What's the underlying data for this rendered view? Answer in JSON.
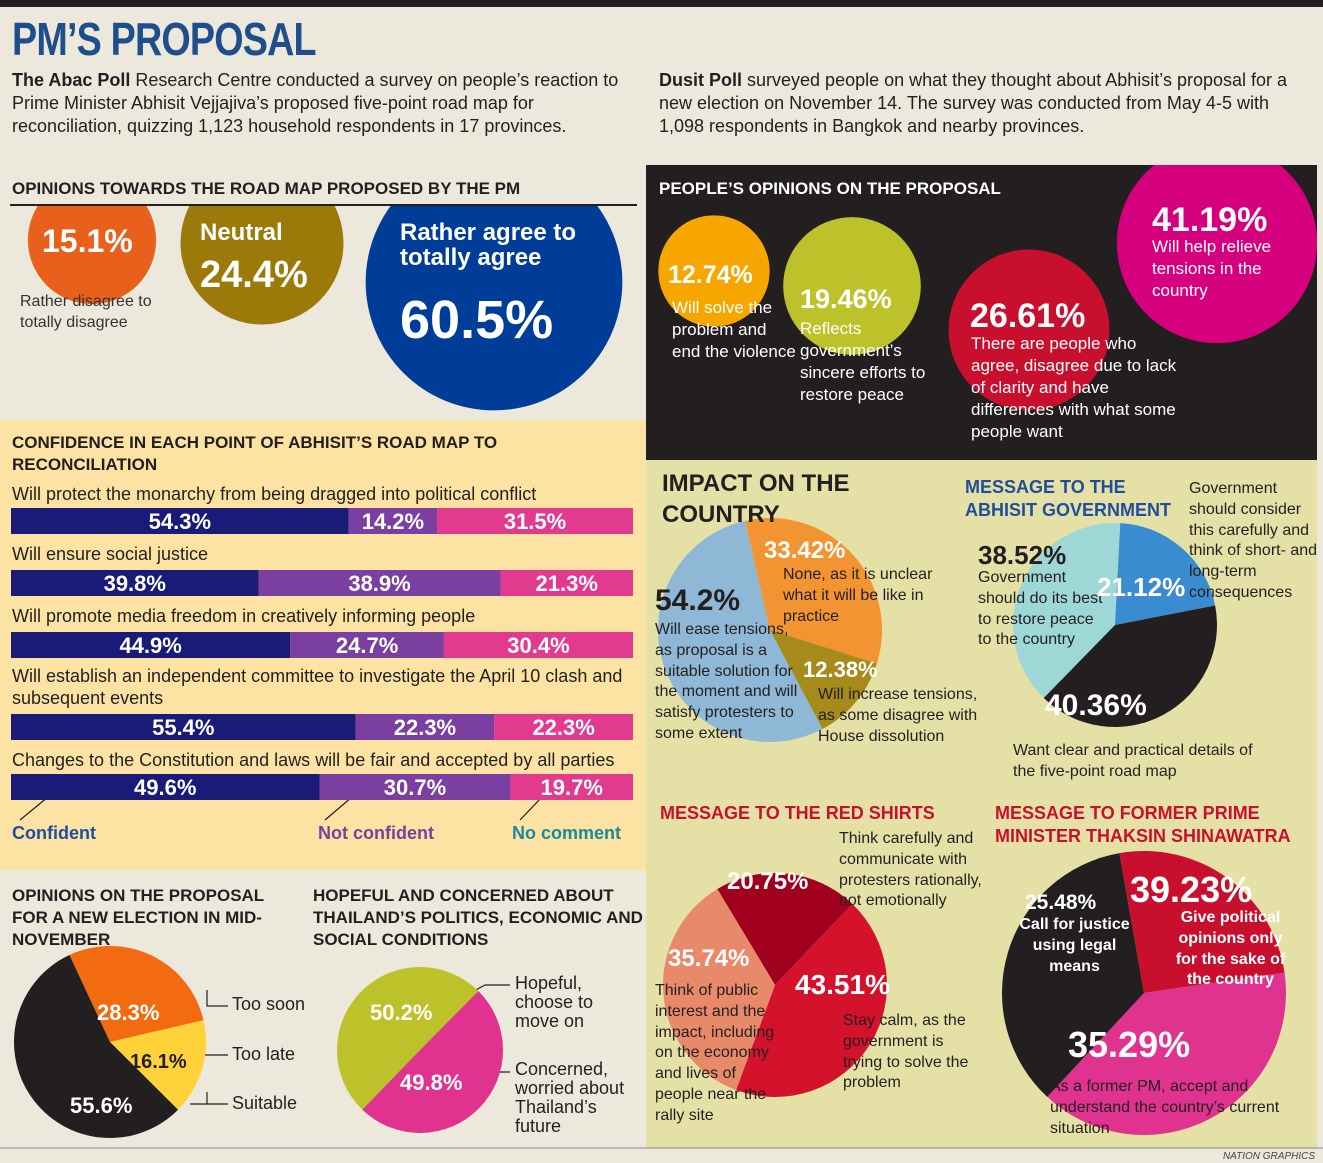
{
  "header": {
    "title": "PM’S PROPOSAL",
    "intro_left": {
      "lead": "The Abac Poll",
      "text": "Research Centre conducted a survey on people’s reaction to Prime Minister Abhisit Vejjajiva’s proposed five-point road map for reconciliation, quizzing 1,123 household respondents in 17 provinces."
    },
    "intro_right": {
      "lead": "Dusit Poll",
      "text": "surveyed people on what they thought about Abhisit’s proposal for a new election on November 14. The survey was conducted from May 4-5 with 1,098 respondents in Bangkok and nearby provinces."
    }
  },
  "chart_data": [
    {
      "type": "bubble",
      "title": "OPINIONS TOWARDS THE ROAD MAP PROPOSED BY THE PM",
      "categories": [
        "Rather disagree to totally disagree",
        "Neutral",
        "Rather agree to totally agree"
      ],
      "values": [
        15.1,
        24.4,
        60.5
      ],
      "value_labels": [
        "15.1%",
        "24.4%",
        "60.5%"
      ],
      "colors": [
        "#e8601c",
        "#9b7a0a",
        "#003d99"
      ]
    },
    {
      "type": "bubble",
      "title": "PEOPLE’S OPINIONS ON THE PROPOSAL",
      "categories": [
        "Will solve the problem and end the violence",
        "Reflects government’s sincere efforts to restore peace",
        "There are people who agree, disagree due to lack of clarity and have differences with what some people want",
        "Will help relieve tensions in the country"
      ],
      "values": [
        12.74,
        19.46,
        26.61,
        41.19
      ],
      "value_labels": [
        "12.74%",
        "19.46%",
        "26.61%",
        "41.19%"
      ],
      "colors": [
        "#f7a600",
        "#bdc22a",
        "#c8102e",
        "#d6007e"
      ]
    },
    {
      "type": "stacked_hbar",
      "title": "CONFIDENCE IN EACH POINT OF ABHISIT’S ROAD MAP TO RECONCILIATION",
      "categories": [
        "Will protect the monarchy from being dragged into political conflict",
        "Will ensure social justice",
        "Will promote media freedom in creatively informing people",
        "Will establish an independent committee to investigate the April 10 clash and subsequent events",
        "Changes to the Constitution and laws will be fair and accepted by all parties"
      ],
      "xlim": [
        0,
        100
      ],
      "series": [
        {
          "name": "Confident",
          "color": "#1a1a78",
          "legend_color": "#1f4e9c",
          "values": [
            54.3,
            39.8,
            44.9,
            55.4,
            49.6
          ],
          "value_labels": [
            "54.3%",
            "39.8%",
            "44.9%",
            "55.4%",
            "49.6%"
          ]
        },
        {
          "name": "Not confident",
          "color": "#7a3fa0",
          "legend_color": "#7a3fa0",
          "values": [
            14.2,
            38.9,
            24.7,
            22.3,
            30.7
          ],
          "value_labels": [
            "14.2%",
            "38.9%",
            "24.7%",
            "22.3%",
            "30.7%"
          ]
        },
        {
          "name": "No comment",
          "color": "#e23a8e",
          "legend_color": "#1a8a9a",
          "values": [
            31.5,
            21.3,
            30.4,
            22.3,
            19.7
          ],
          "value_labels": [
            "31.5%",
            "21.3%",
            "30.4%",
            "22.3%",
            "19.7%"
          ]
        }
      ]
    },
    {
      "type": "pie",
      "title": "IMPACT ON THE COUNTRY",
      "categories": [
        "Will ease tensions, as proposal is a suitable solution for the moment and will satisfy protesters to some extent",
        "None, as it is unclear what it will be like in practice",
        "Will increase tensions, as some disagree with House dissolution"
      ],
      "values": [
        54.2,
        33.42,
        12.38
      ],
      "value_labels": [
        "54.2%",
        "33.42%",
        "12.38%"
      ],
      "colors": [
        "#8fb8d6",
        "#f39433",
        "#a68a1a"
      ]
    },
    {
      "type": "pie",
      "title": "MESSAGE TO THE ABHISIT GOVERNMENT",
      "categories": [
        "Government should do its best to restore peace to the country",
        "Government should consider this carefully and think of short- and long-term consequences",
        "Want clear and practical details of the five-point road map"
      ],
      "values": [
        38.52,
        21.12,
        40.36
      ],
      "value_labels": [
        "38.52%",
        "21.12%",
        "40.36%"
      ],
      "colors": [
        "#9ed8d6",
        "#3a8cd0",
        "#231f20"
      ]
    },
    {
      "type": "pie",
      "title": "MESSAGE TO THE RED SHIRTS",
      "categories": [
        "Think carefully and communicate with protesters rationally, not emotionally",
        "Stay calm, as the government is trying to solve the problem",
        "Think of public interest and the impact, including on the economy and lives of people near the rally site"
      ],
      "values": [
        20.75,
        43.51,
        35.74
      ],
      "value_labels": [
        "20.75%",
        "43.51%",
        "35.74%"
      ],
      "colors": [
        "#a0001e",
        "#d4122c",
        "#e8896a"
      ]
    },
    {
      "type": "pie",
      "title": "MESSAGE TO FORMER PRIME MINISTER THAKSIN SHINAWATRA",
      "categories": [
        "Call for justice using legal means",
        "Give political opinions only for the sake of the country",
        "As a former PM, accept and understand the country’s current situation"
      ],
      "values": [
        25.48,
        39.23,
        35.29
      ],
      "value_labels": [
        "25.48%",
        "39.23%",
        "35.29%"
      ],
      "colors": [
        "#c8102e",
        "#e0338f",
        "#231f20"
      ]
    },
    {
      "type": "pie",
      "title": "OPINIONS ON THE PROPOSAL FOR A NEW ELECTION IN MID-NOVEMBER",
      "categories": [
        "Too soon",
        "Too late",
        "Suitable"
      ],
      "values": [
        28.3,
        16.1,
        55.6
      ],
      "value_labels": [
        "28.3%",
        "16.1%",
        "55.6%"
      ],
      "colors": [
        "#f26b10",
        "#ffd23a",
        "#231f20"
      ]
    },
    {
      "type": "pie",
      "title": "HOPEFUL AND CONCERNED ABOUT THAILAND’S POLITICS, ECONOMIC AND SOCIAL CONDITIONS",
      "categories": [
        "Hopeful, choose to move on",
        "Concerned, worried about Thailand’s future"
      ],
      "values": [
        50.2,
        49.8
      ],
      "value_labels": [
        "50.2%",
        "49.8%"
      ],
      "colors": [
        "#bdc22a",
        "#e0338f"
      ]
    }
  ],
  "footer": "NATION GRAPHICS"
}
